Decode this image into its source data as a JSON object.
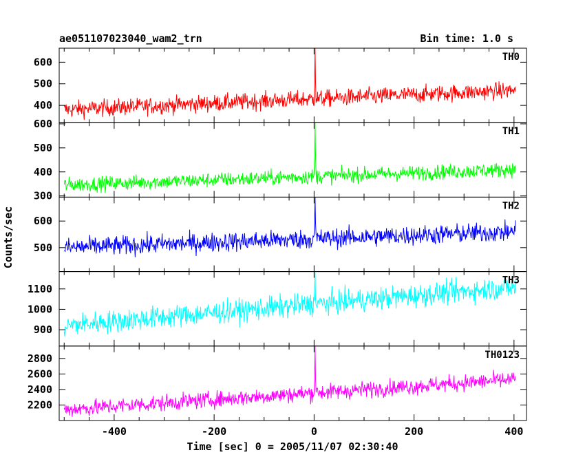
{
  "chart_data": {
    "type": "line",
    "title_left": "ae051107023040_wam2_trn",
    "title_right": "Bin time: 1.0 s",
    "xlabel": "Time [sec] 0 = 2005/11/07 02:30:40",
    "ylabel": "Counts/sec",
    "xlim": [
      -510,
      425
    ],
    "xticks": [
      -400,
      -200,
      0,
      200,
      400
    ],
    "grid": false,
    "panels": [
      {
        "name": "TH0",
        "color": "#ff0000",
        "ylim": [
          320,
          665
        ],
        "yticks": [
          400,
          500,
          600
        ],
        "baseline_start": 380,
        "baseline_end": 470,
        "noise": 28,
        "peak": 665,
        "peak_time": 2
      },
      {
        "name": "TH1",
        "color": "#00ff00",
        "ylim": [
          295,
          605
        ],
        "yticks": [
          300,
          400,
          500,
          600
        ],
        "baseline_start": 345,
        "baseline_end": 410,
        "noise": 22,
        "peak": 605,
        "peak_time": 2
      },
      {
        "name": "TH2",
        "color": "#0000ff",
        "ylim": [
          410,
          690
        ],
        "yticks": [
          500,
          600
        ],
        "baseline_start": 500,
        "baseline_end": 560,
        "noise": 26,
        "peak": 690,
        "peak_time": 2
      },
      {
        "name": "TH3",
        "color": "#00ffff",
        "ylim": [
          820,
          1185
        ],
        "yticks": [
          900,
          1000,
          1100
        ],
        "baseline_start": 920,
        "baseline_end": 1110,
        "noise": 40,
        "peak": 1185,
        "peak_time": 2
      },
      {
        "name": "TH0123",
        "color": "#ff00ff",
        "ylim": [
          2000,
          2960
        ],
        "yticks": [
          2200,
          2400,
          2600,
          2800
        ],
        "baseline_start": 2140,
        "baseline_end": 2530,
        "noise": 75,
        "peak": 2960,
        "peak_time": 2
      }
    ]
  }
}
